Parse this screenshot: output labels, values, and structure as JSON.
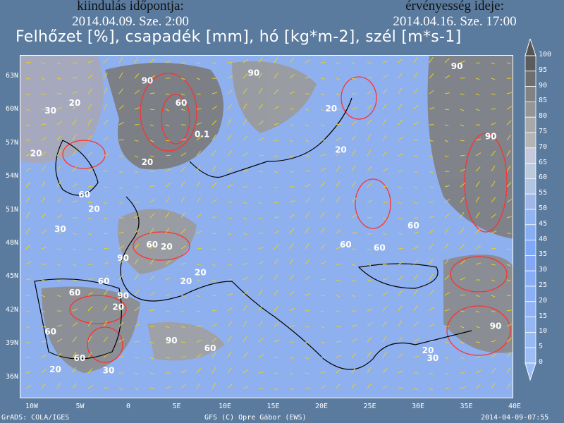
{
  "header": {
    "left_label": "kiindulás időpontja:",
    "left_value": "2014.04.09. Sze. 2:00",
    "right_label": "érvényesség ideje:",
    "right_value": "2014.04.16. Sze. 17:00",
    "title": "Felhőzet [%], csapadék [mm], hó [kg*m-2], szél [m*s-1]"
  },
  "axes": {
    "lat_labels": [
      "63N",
      "60N",
      "57N",
      "54N",
      "51N",
      "48N",
      "45N",
      "42N",
      "39N",
      "36N"
    ],
    "lon_labels": [
      "10W",
      "5W",
      "0",
      "5E",
      "10E",
      "15E",
      "20E",
      "25E",
      "30E",
      "35E",
      "40E"
    ]
  },
  "colorbar": {
    "labels": [
      "100",
      "95",
      "90",
      "85",
      "80",
      "75",
      "70",
      "65",
      "60",
      "55",
      "50",
      "45",
      "40",
      "35",
      "30",
      "25",
      "20",
      "15",
      "10",
      "5",
      "0"
    ],
    "colors": [
      "#5c5c5c",
      "#6e6e6e",
      "#828282",
      "#959595",
      "#a8a8a8",
      "#b4b4b4",
      "#c8c8dc",
      "#bccbdc",
      "#afc5e0",
      "#a0b8e8",
      "#92b4f0",
      "#88aef4",
      "#80a8f8",
      "#84a8f6",
      "#88acf6",
      "#8cb0f6",
      "#90b2f4",
      "#94b6f4",
      "#98baf4",
      "#9cbef4"
    ]
  },
  "contour_labels": [
    {
      "text": "90",
      "lon": 1.5,
      "lat": 62.5
    },
    {
      "text": "30",
      "lon": -8.5,
      "lat": 59.8
    },
    {
      "text": "20",
      "lon": -6,
      "lat": 60.5
    },
    {
      "text": "60",
      "lon": 5,
      "lat": 60.5
    },
    {
      "text": "0.1",
      "lon": 7,
      "lat": 57.7
    },
    {
      "text": "20",
      "lon": -10,
      "lat": 56
    },
    {
      "text": "20",
      "lon": 1.5,
      "lat": 55.2
    },
    {
      "text": "90",
      "lon": 12.5,
      "lat": 63.2
    },
    {
      "text": "20",
      "lon": 20.5,
      "lat": 60
    },
    {
      "text": "20",
      "lon": 21.5,
      "lat": 56.3
    },
    {
      "text": "90",
      "lon": 33.5,
      "lat": 63.8
    },
    {
      "text": "90",
      "lon": 37,
      "lat": 57.5
    },
    {
      "text": "60",
      "lon": -5,
      "lat": 52.3
    },
    {
      "text": "20",
      "lon": -4,
      "lat": 51
    },
    {
      "text": "30",
      "lon": -7.5,
      "lat": 49.2
    },
    {
      "text": "60",
      "lon": 2,
      "lat": 47.8
    },
    {
      "text": "20",
      "lon": 3.5,
      "lat": 47.6
    },
    {
      "text": "90",
      "lon": -1,
      "lat": 46.6
    },
    {
      "text": "20",
      "lon": 7,
      "lat": 45.3
    },
    {
      "text": "20",
      "lon": 5.5,
      "lat": 44.5
    },
    {
      "text": "60",
      "lon": -6,
      "lat": 43.5
    },
    {
      "text": "60",
      "lon": -3,
      "lat": 44.5
    },
    {
      "text": "90",
      "lon": -1,
      "lat": 43.2
    },
    {
      "text": "20",
      "lon": -1.5,
      "lat": 42.2
    },
    {
      "text": "60",
      "lon": -8.5,
      "lat": 40
    },
    {
      "text": "60",
      "lon": -5.5,
      "lat": 37.6
    },
    {
      "text": "20",
      "lon": -8,
      "lat": 36.6
    },
    {
      "text": "30",
      "lon": -2.5,
      "lat": 36.5
    },
    {
      "text": "90",
      "lon": 4,
      "lat": 39.2
    },
    {
      "text": "60",
      "lon": 8,
      "lat": 38.5
    },
    {
      "text": "60",
      "lon": 22,
      "lat": 47.8
    },
    {
      "text": "60",
      "lon": 25.5,
      "lat": 47.5
    },
    {
      "text": "60",
      "lon": 29,
      "lat": 49.5
    },
    {
      "text": "90",
      "lon": 37.5,
      "lat": 40.5
    },
    {
      "text": "20",
      "lon": 30.5,
      "lat": 38.3
    },
    {
      "text": "30",
      "lon": 31,
      "lat": 37.6
    }
  ],
  "footer": {
    "left": "GrADS: COLA/IGES",
    "center": "GFS (C) Opre Gábor (EWS)",
    "right": "2014-04-09-07:55"
  }
}
